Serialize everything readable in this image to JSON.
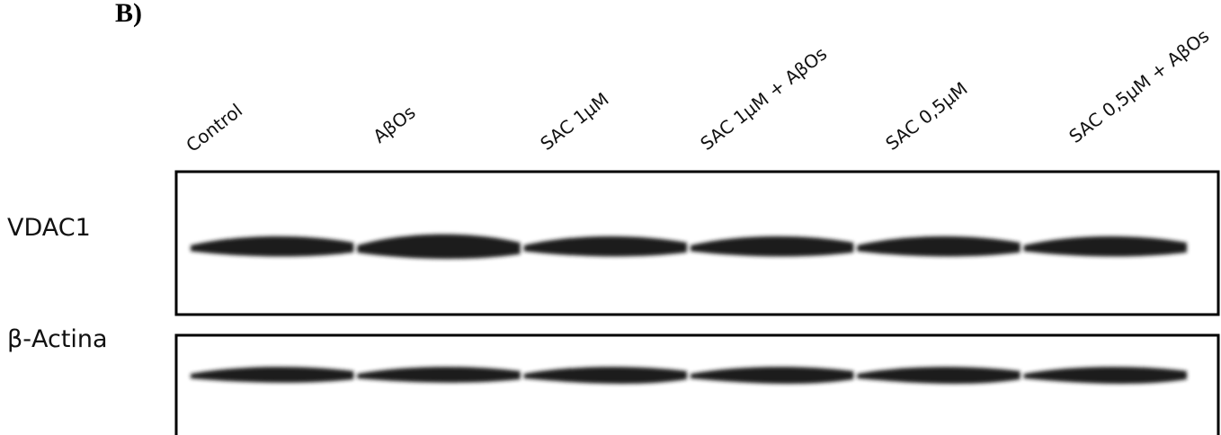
{
  "panel_label": "B)",
  "lanes": [
    "Control",
    "AβOs",
    "SAC 1μM",
    "SAC 1μM + AβOs",
    "SAC 0,5μM",
    "SAC 0,5μM + AβOs"
  ],
  "rows": [
    "VDAC1",
    "β-Actina"
  ]
}
